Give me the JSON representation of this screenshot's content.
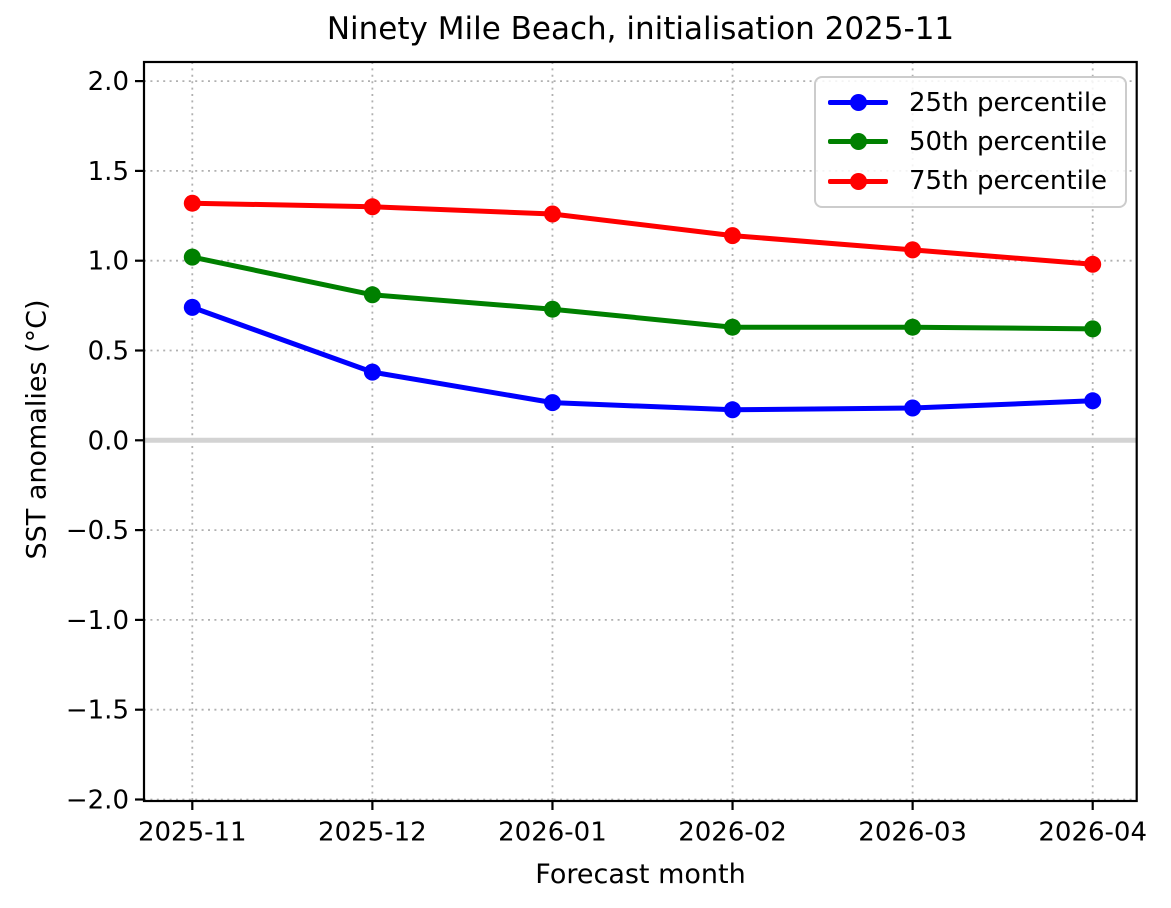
{
  "figure": {
    "title": "Ninety Mile Beach, initialisation 2025-11",
    "xlabel": "Forecast month",
    "ylabel": "SST anomalies (°C)"
  },
  "chart_data": {
    "type": "line",
    "title": "Ninety Mile Beach, initialisation 2025-11",
    "xlabel": "Forecast month",
    "ylabel": "SST anomalies (°C)",
    "categories": [
      "2025-11",
      "2025-12",
      "2026-01",
      "2026-02",
      "2026-03",
      "2026-04"
    ],
    "series": [
      {
        "name": "25th percentile",
        "color": "#0000ff",
        "values": [
          0.74,
          0.38,
          0.21,
          0.17,
          0.18,
          0.22
        ]
      },
      {
        "name": "50th percentile",
        "color": "#008000",
        "values": [
          1.02,
          0.81,
          0.73,
          0.63,
          0.63,
          0.62
        ]
      },
      {
        "name": "75th percentile",
        "color": "#ff0000",
        "values": [
          1.32,
          1.3,
          1.26,
          1.14,
          1.06,
          0.98
        ]
      }
    ],
    "ylim": [
      -2.0,
      2.0
    ],
    "yticks": {
      "values": [
        2.0,
        1.5,
        1.0,
        0.5,
        0.0,
        -0.5,
        -1.0,
        -1.5,
        -2.0
      ],
      "labels": [
        "2.0",
        "1.5",
        "1.0",
        "0.5",
        "0.0",
        "−0.5",
        "−1.0",
        "−1.5",
        "−2.0"
      ]
    },
    "grid": true,
    "grid_style": "dotted",
    "grid_color": "#b0b0b0",
    "zero_line": {
      "value": 0.0,
      "color": "#d3d3d3"
    },
    "axis_color": "#000000",
    "text_color": "#000000",
    "background_color": "#ffffff",
    "legend_position": "upper right"
  }
}
